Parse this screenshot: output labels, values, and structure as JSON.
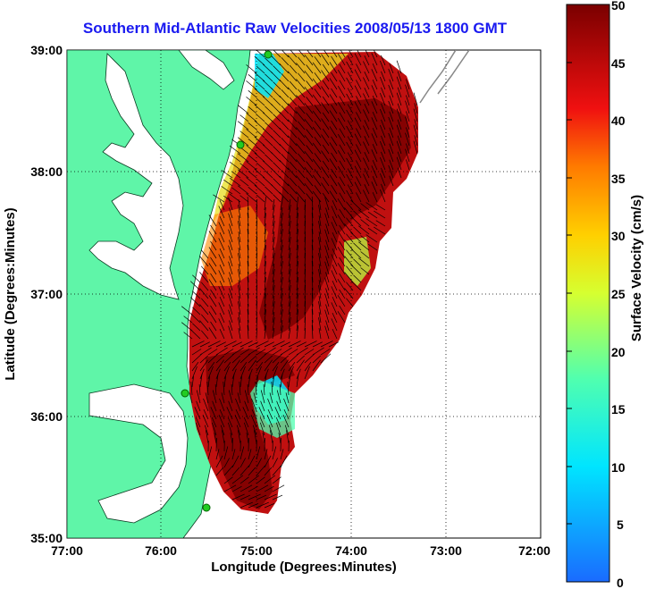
{
  "title": "Southern Mid-Atlantic Raw Velocities 2008/05/13 1800 GMT",
  "xlabel": "Longitude (Degrees:Minutes)",
  "ylabel": "Latitude (Degrees:Minutes)",
  "x_ticks": [
    "77:00",
    "76:00",
    "75:00",
    "74:00",
    "73:00",
    "72:00"
  ],
  "y_ticks": [
    "39:00",
    "38:00",
    "37:00",
    "36:00",
    "35:00"
  ],
  "colorbar": {
    "label": "Surface Velocity (cm/s)",
    "ticks": [
      "50",
      "45",
      "40",
      "35",
      "30",
      "25",
      "20",
      "15",
      "10",
      "5",
      "0"
    ],
    "range": [
      0,
      50
    ]
  },
  "colors": {
    "land": "#5ff5a8",
    "title": "#1a1af0",
    "grid": "#000000",
    "stations": "#22cc22"
  }
}
